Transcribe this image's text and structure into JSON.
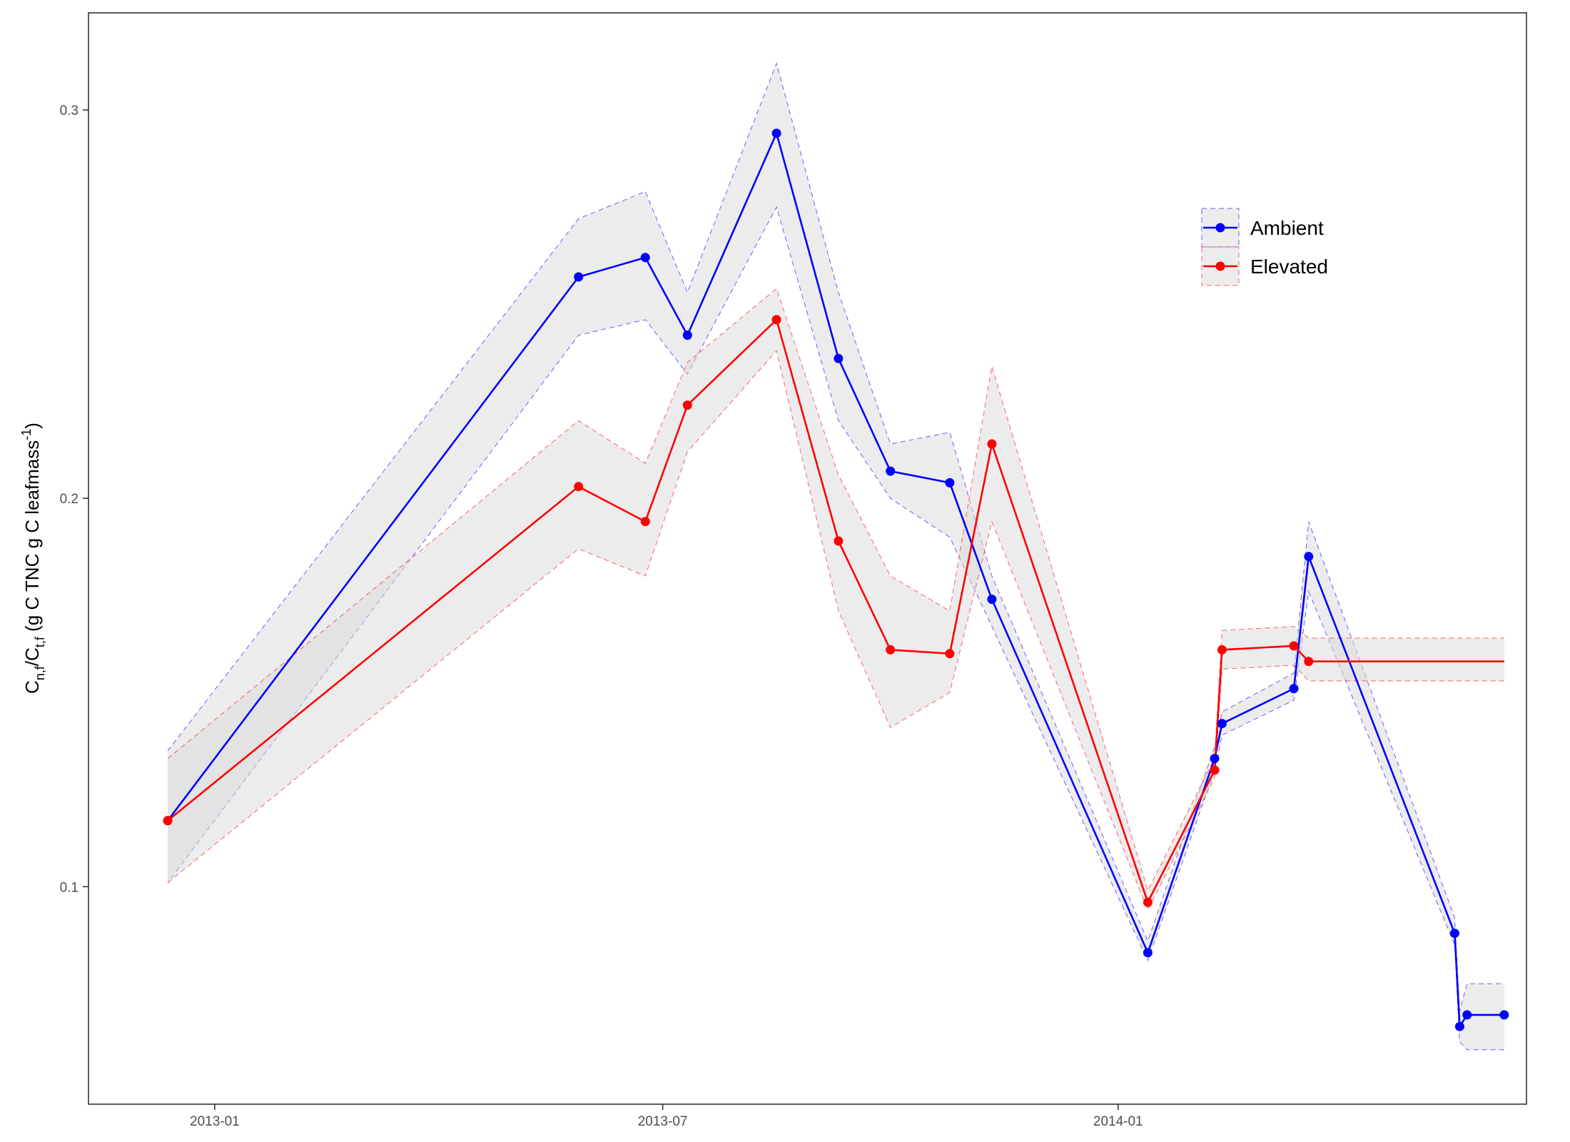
{
  "chart_data": {
    "type": "line",
    "title": "",
    "xlabel": "",
    "ylabel": {
      "main": "C",
      "sub1": "n,f",
      "mid": "/C",
      "sub2": "t,f",
      "rest": " (g C TNC g C leafmass",
      "sup": "-1",
      "close": ")"
    },
    "xlim": [
      "2012-11-11",
      "2014-06-15"
    ],
    "ylim": [
      0.044,
      0.325
    ],
    "x_ticks": [
      {
        "date": "2013-01-01",
        "label": "2013-01"
      },
      {
        "date": "2013-07-01",
        "label": "2013-07"
      },
      {
        "date": "2014-01-01",
        "label": "2014-01"
      }
    ],
    "y_ticks": [
      {
        "value": 0.1,
        "label": "0.1"
      },
      {
        "value": 0.2,
        "label": "0.2"
      },
      {
        "value": 0.3,
        "label": "0.3"
      }
    ],
    "grid": false,
    "legend_position": "top-right",
    "series": [
      {
        "name": "Ambient",
        "color": "#0000ff",
        "points": [
          {
            "x": "2012-12-13",
            "y": 0.117,
            "lo": 0.101,
            "hi": 0.135
          },
          {
            "x": "2013-05-28",
            "y": 0.257,
            "lo": 0.242,
            "hi": 0.272
          },
          {
            "x": "2013-06-24",
            "y": 0.262,
            "lo": 0.246,
            "hi": 0.279
          },
          {
            "x": "2013-07-11",
            "y": 0.242,
            "lo": 0.232,
            "hi": 0.253
          },
          {
            "x": "2013-08-16",
            "y": 0.294,
            "lo": 0.275,
            "hi": 0.312
          },
          {
            "x": "2013-09-10",
            "y": 0.236,
            "lo": 0.22,
            "hi": 0.253
          },
          {
            "x": "2013-10-01",
            "y": 0.207,
            "lo": 0.2,
            "hi": 0.214
          },
          {
            "x": "2013-10-25",
            "y": 0.204,
            "lo": 0.19,
            "hi": 0.217
          },
          {
            "x": "2013-11-11",
            "y": 0.174,
            "lo": 0.167,
            "hi": 0.18
          },
          {
            "x": "2014-01-13",
            "y": 0.083,
            "lo": 0.081,
            "hi": 0.086
          },
          {
            "x": "2014-02-09",
            "y": 0.133,
            "lo": 0.13,
            "hi": 0.136
          },
          {
            "x": "2014-02-12",
            "y": 0.142,
            "lo": 0.139,
            "hi": 0.145
          },
          {
            "x": "2014-03-13",
            "y": 0.151,
            "lo": 0.148,
            "hi": 0.155
          },
          {
            "x": "2014-03-19",
            "y": 0.185,
            "lo": 0.176,
            "hi": 0.194
          },
          {
            "x": "2014-05-17",
            "y": 0.088,
            "lo": 0.085,
            "hi": 0.092
          },
          {
            "x": "2014-05-19",
            "y": 0.064,
            "lo": 0.06,
            "hi": 0.068
          },
          {
            "x": "2014-05-22",
            "y": 0.067,
            "lo": 0.058,
            "hi": 0.075
          },
          {
            "x": "2014-06-06",
            "y": 0.067,
            "lo": 0.058,
            "hi": 0.075
          }
        ]
      },
      {
        "name": "Elevated",
        "color": "#ff0000",
        "points": [
          {
            "x": "2012-12-13",
            "y": 0.117,
            "lo": 0.101,
            "hi": 0.133
          },
          {
            "x": "2013-05-28",
            "y": 0.203,
            "lo": 0.187,
            "hi": 0.22
          },
          {
            "x": "2013-06-24",
            "y": 0.194,
            "lo": 0.18,
            "hi": 0.209
          },
          {
            "x": "2013-07-11",
            "y": 0.224,
            "lo": 0.212,
            "hi": 0.235
          },
          {
            "x": "2013-08-16",
            "y": 0.246,
            "lo": 0.238,
            "hi": 0.254
          },
          {
            "x": "2013-09-10",
            "y": 0.189,
            "lo": 0.171,
            "hi": 0.206
          },
          {
            "x": "2013-10-01",
            "y": 0.161,
            "lo": 0.141,
            "hi": 0.18
          },
          {
            "x": "2013-10-25",
            "y": 0.16,
            "lo": 0.15,
            "hi": 0.171
          },
          {
            "x": "2013-11-11",
            "y": 0.214,
            "lo": 0.194,
            "hi": 0.234
          },
          {
            "x": "2014-01-13",
            "y": 0.096,
            "lo": 0.094,
            "hi": 0.099
          },
          {
            "x": "2014-02-09",
            "y": 0.13,
            "lo": 0.128,
            "hi": 0.133
          },
          {
            "x": "2014-02-12",
            "y": 0.161,
            "lo": 0.156,
            "hi": 0.166
          },
          {
            "x": "2014-03-13",
            "y": 0.162,
            "lo": 0.157,
            "hi": 0.167
          },
          {
            "x": "2014-03-19",
            "y": 0.158,
            "lo": 0.153,
            "hi": 0.164
          },
          {
            "x": "2014-06-06",
            "y": 0.158,
            "lo": 0.153,
            "hi": 0.164
          }
        ],
        "unmarked_points": [
          "2014-06-06"
        ]
      }
    ]
  }
}
